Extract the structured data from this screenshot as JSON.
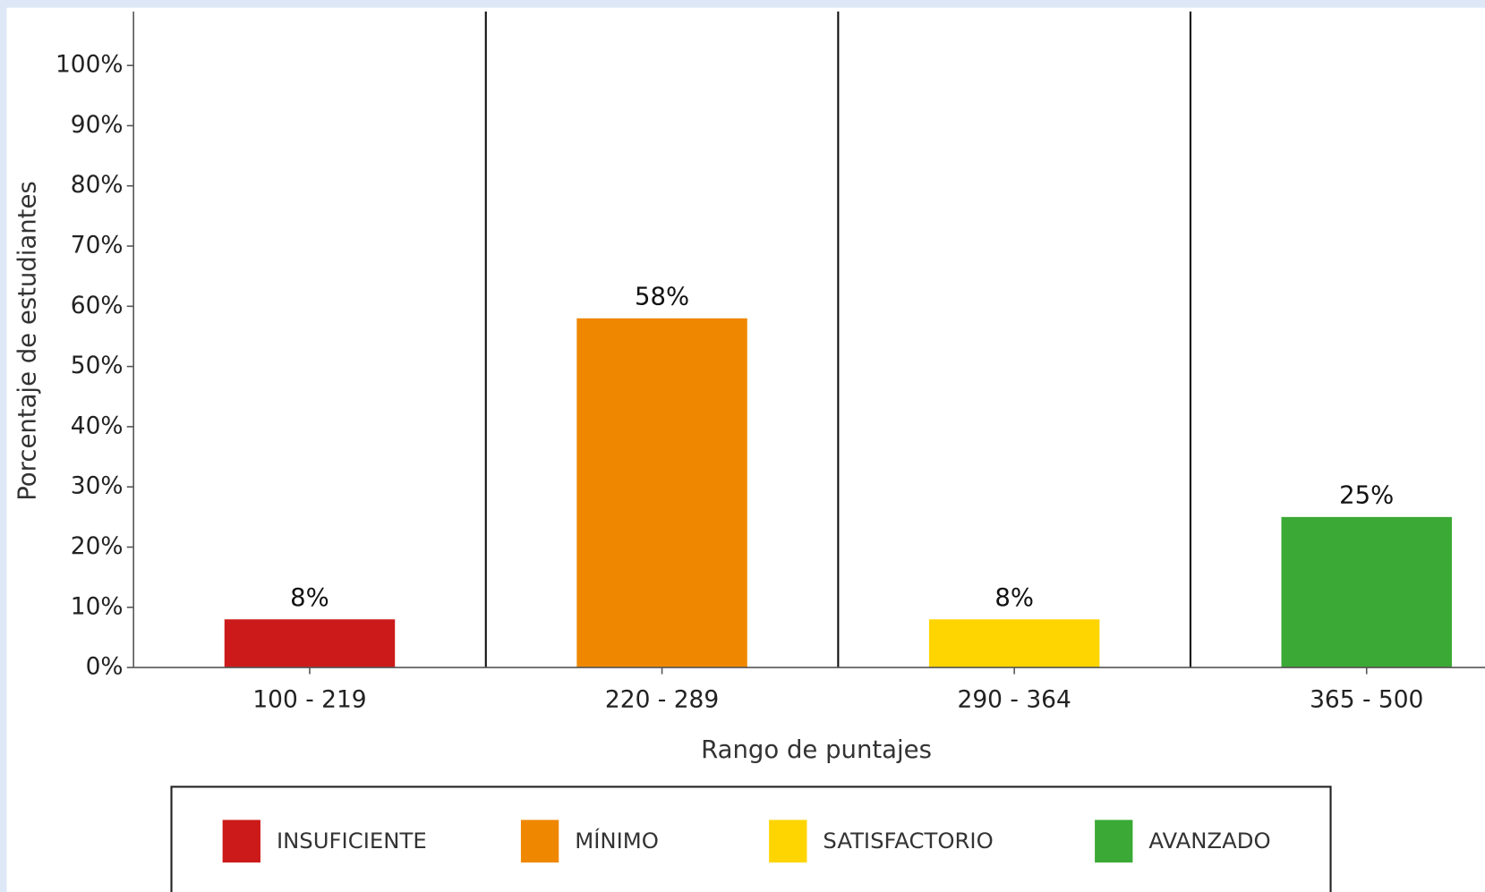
{
  "chart_data": {
    "type": "bar",
    "categories": [
      "100 - 219",
      "220 - 289",
      "290 - 364",
      "365 - 500"
    ],
    "values": [
      8,
      58,
      8,
      25
    ],
    "value_labels": [
      "8%",
      "58%",
      "8%",
      "25%"
    ],
    "colors": [
      "#cc1a1a",
      "#ef8800",
      "#fed500",
      "#3aa935"
    ],
    "legend": [
      "INSUFICIENTE",
      "MÍNIMO",
      "SATISFACTORIO",
      "AVANZADO"
    ],
    "x_label": "Rango de puntajes",
    "y_label": "Porcentaje de estudiantes",
    "ylim": [
      0,
      100
    ],
    "yticks": [
      {
        "value": 0,
        "label": "0%"
      },
      {
        "value": 10,
        "label": "10%"
      },
      {
        "value": 20,
        "label": "20%"
      },
      {
        "value": 30,
        "label": "30%"
      },
      {
        "value": 40,
        "label": "40%"
      },
      {
        "value": 50,
        "label": "50%"
      },
      {
        "value": 60,
        "label": "60%"
      },
      {
        "value": 70,
        "label": "70%"
      },
      {
        "value": 80,
        "label": "80%"
      },
      {
        "value": 90,
        "label": "90%"
      },
      {
        "value": 100,
        "label": "100%"
      }
    ]
  }
}
